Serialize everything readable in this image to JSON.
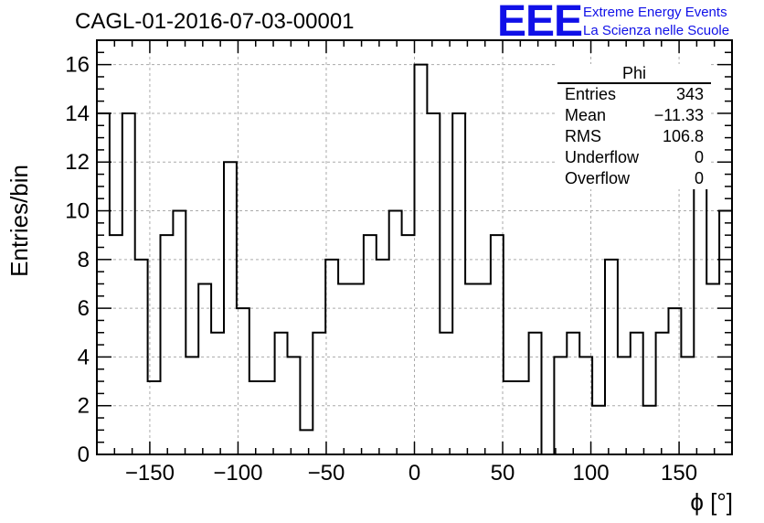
{
  "title": "CAGL-01-2016-07-03-00001",
  "logo": {
    "mark": "EEE",
    "line1": "Extreme Energy Events",
    "line2": "La Scienza nelle Scuole"
  },
  "stats_box": {
    "title": "Phi",
    "rows": [
      {
        "label": "Entries",
        "value": "343"
      },
      {
        "label": "Mean",
        "value": "−11.33"
      },
      {
        "label": "RMS",
        "value": "106.8"
      },
      {
        "label": "Underflow",
        "value": "0"
      },
      {
        "label": "Overflow",
        "value": "0"
      }
    ]
  },
  "chart_data": {
    "type": "bar",
    "style": "step-histogram",
    "title": "CAGL-01-2016-07-03-00001",
    "xlabel": "ϕ [°]",
    "ylabel": "Entries/bin",
    "xlim": [
      -180,
      180
    ],
    "ylim": [
      0,
      17
    ],
    "grid": true,
    "xticks": [
      -150,
      -100,
      -50,
      0,
      50,
      100,
      150
    ],
    "xtick_labels": [
      "−150",
      "−100",
      "−50",
      "0",
      "50",
      "100",
      "150"
    ],
    "yticks": [
      0,
      2,
      4,
      6,
      8,
      10,
      12,
      14,
      16
    ],
    "bin_edges": [
      -180,
      -172.8,
      -165.6,
      -158.4,
      -151.2,
      -144,
      -136.8,
      -129.6,
      -122.4,
      -115.2,
      -108,
      -100.8,
      -93.6,
      -86.4,
      -79.2,
      -72,
      -64.8,
      -57.6,
      -50.4,
      -43.2,
      -36,
      -28.8,
      -21.6,
      -14.4,
      -7.2,
      0,
      7.2,
      14.4,
      21.6,
      28.8,
      36,
      43.2,
      50.4,
      57.6,
      64.8,
      72,
      79.2,
      86.4,
      93.6,
      100.8,
      108,
      115.2,
      122.4,
      129.6,
      136.8,
      144,
      151.2,
      158.4,
      165.6,
      172.8,
      180
    ],
    "values": [
      14,
      9,
      14,
      8,
      3,
      9,
      10,
      4,
      7,
      5,
      12,
      6,
      3,
      3,
      5,
      4,
      1,
      5,
      8,
      7,
      7,
      9,
      8,
      10,
      9,
      16,
      14,
      5,
      14,
      7,
      7,
      9,
      3,
      3,
      5,
      0,
      4,
      5,
      4,
      2,
      8,
      4,
      5,
      2,
      5,
      6,
      4,
      13,
      7,
      10
    ]
  }
}
